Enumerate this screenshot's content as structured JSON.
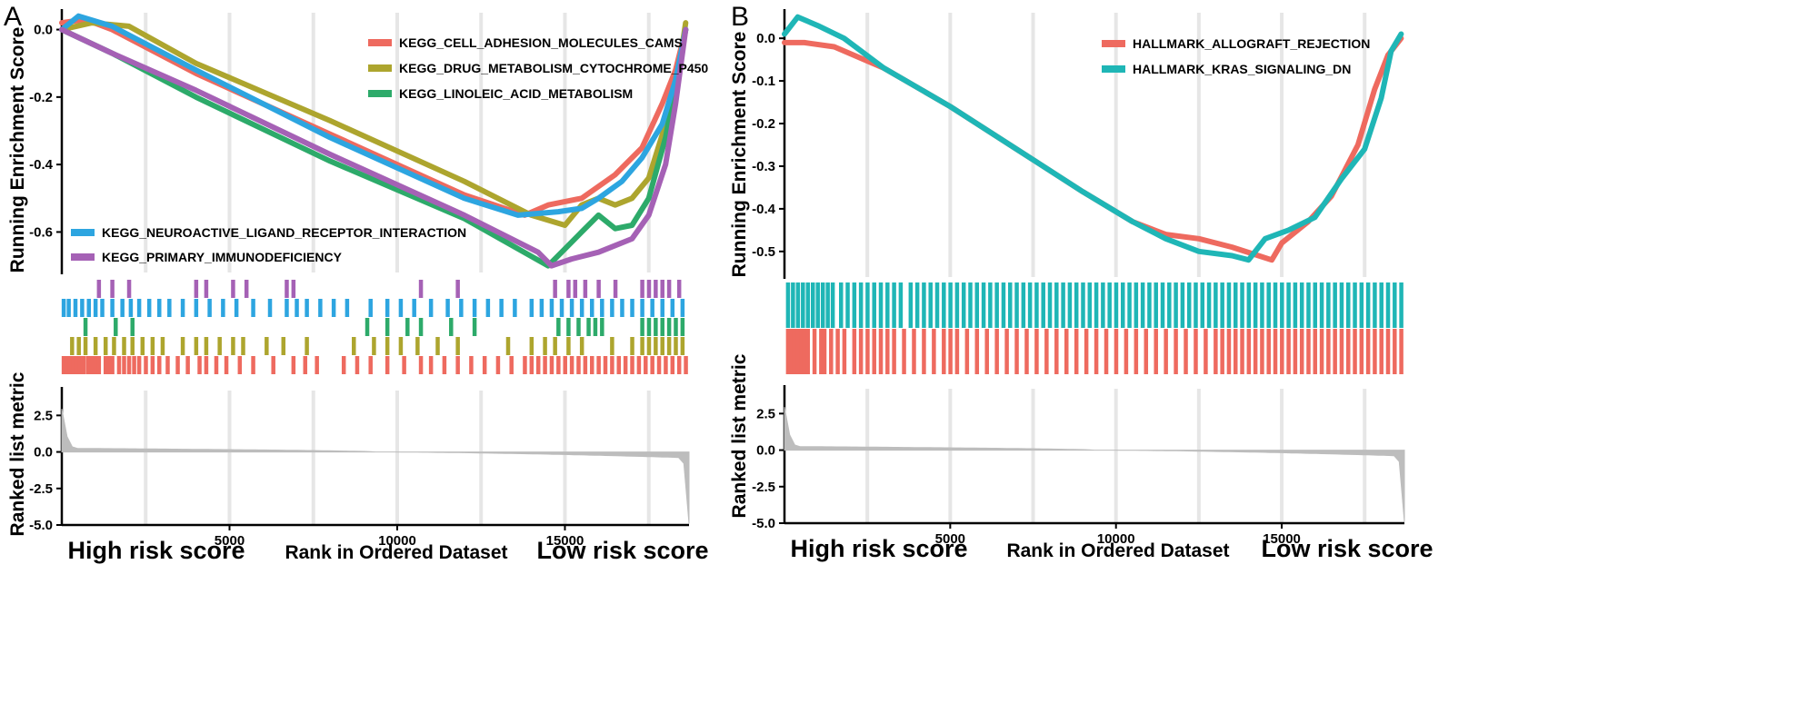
{
  "chart_data": [
    {
      "panel": "A",
      "type": "line",
      "ylabel_top": "Running Enrichment Score",
      "ylabel_bottom": "Ranked list metric",
      "xlabel": "Rank in Ordered Dataset",
      "left_label": "High risk score",
      "right_label": "Low risk score",
      "x_ticks": [
        "5000",
        "10000",
        "15000"
      ],
      "x_tick_values": [
        5000,
        10000,
        15000
      ],
      "xlim": [
        0,
        18700
      ],
      "es_ylim": [
        -0.72,
        0.05
      ],
      "es_ticks": [
        0.0,
        -0.2,
        -0.4,
        -0.6
      ],
      "es_tick_labels": [
        "0.0",
        "-0.2",
        "-0.4",
        "-0.6"
      ],
      "metric_ylim": [
        -5.0,
        4.2
      ],
      "metric_ticks": [
        2.5,
        0.0,
        -2.5,
        -5.0
      ],
      "metric_tick_labels": [
        "2.5",
        "0.0",
        "-2.5",
        "-5.0"
      ],
      "series": [
        {
          "name": "KEGG_CELL_ADHESION_MOLECULES_CAMS",
          "color": "#EE6A5F",
          "points": [
            [
              0,
              0.02
            ],
            [
              700,
              0.03
            ],
            [
              1500,
              0.0
            ],
            [
              4000,
              -0.13
            ],
            [
              8000,
              -0.31
            ],
            [
              12000,
              -0.49
            ],
            [
              13800,
              -0.55
            ],
            [
              14500,
              -0.52
            ],
            [
              15500,
              -0.5
            ],
            [
              16500,
              -0.43
            ],
            [
              17300,
              -0.35
            ],
            [
              17900,
              -0.22
            ],
            [
              18300,
              -0.12
            ],
            [
              18600,
              0.0
            ]
          ],
          "hits": [
            50,
            150,
            230,
            330,
            430,
            530,
            650,
            780,
            880,
            990,
            1100,
            1300,
            1400,
            1500,
            1700,
            1850,
            2000,
            2150,
            2300,
            2500,
            2700,
            2900,
            3150,
            3450,
            3750,
            4100,
            4300,
            4600,
            4900,
            5300,
            5700,
            6300,
            6900,
            7250,
            7600,
            8400,
            8800,
            9200,
            9700,
            10200,
            10700,
            11000,
            11400,
            11800,
            12200,
            12600,
            13000,
            13400,
            13800,
            14000,
            14200,
            14400,
            14600,
            14800,
            15000,
            15200,
            15400,
            15600,
            15800,
            16000,
            16200,
            16400,
            16600,
            16800,
            17000,
            17200,
            17400,
            17600,
            17800,
            18000,
            18200,
            18400,
            18600
          ]
        },
        {
          "name": "KEGG_DRUG_METABOLISM_CYTOCHROME_P450",
          "color": "#ADA52E",
          "points": [
            [
              0,
              0.0
            ],
            [
              900,
              0.02
            ],
            [
              2000,
              0.01
            ],
            [
              4000,
              -0.1
            ],
            [
              8000,
              -0.27
            ],
            [
              12000,
              -0.45
            ],
            [
              14000,
              -0.55
            ],
            [
              15000,
              -0.58
            ],
            [
              15500,
              -0.52
            ],
            [
              16000,
              -0.5
            ],
            [
              16500,
              -0.52
            ],
            [
              17000,
              -0.5
            ],
            [
              17500,
              -0.44
            ],
            [
              18000,
              -0.28
            ],
            [
              18300,
              -0.18
            ],
            [
              18600,
              0.02
            ]
          ],
          "hits": [
            300,
            500,
            700,
            1000,
            1300,
            1550,
            1850,
            2100,
            2400,
            2700,
            3000,
            3600,
            4000,
            4300,
            4700,
            5100,
            5400,
            6100,
            6600,
            7300,
            8700,
            9300,
            9700,
            10100,
            10600,
            11200,
            11800,
            13300,
            14000,
            14400,
            14700,
            15100,
            15500,
            16400,
            17000,
            17300,
            17500,
            17700,
            17900,
            18100,
            18300,
            18500
          ]
        },
        {
          "name": "KEGG_LINOLEIC_ACID_METABOLISM",
          "color": "#2DAA6A",
          "points": [
            [
              0,
              0.0
            ],
            [
              1500,
              -0.07
            ],
            [
              4000,
              -0.2
            ],
            [
              8000,
              -0.39
            ],
            [
              12000,
              -0.56
            ],
            [
              14500,
              -0.7
            ],
            [
              15000,
              -0.65
            ],
            [
              15500,
              -0.6
            ],
            [
              16000,
              -0.55
            ],
            [
              16500,
              -0.59
            ],
            [
              17000,
              -0.58
            ],
            [
              17500,
              -0.5
            ],
            [
              18000,
              -0.32
            ],
            [
              18600,
              0.0
            ]
          ],
          "hits": [
            700,
            1600,
            2100,
            9100,
            9700,
            10300,
            10700,
            11600,
            12300,
            14800,
            15100,
            15400,
            15700,
            15900,
            16100,
            17300,
            17500,
            17700,
            17900,
            18100,
            18300,
            18500
          ]
        },
        {
          "name": "KEGG_NEUROACTIVE_LIGAND_RECEPTOR_INTERACTION",
          "color": "#2DA5E0",
          "points": [
            [
              0,
              0.0
            ],
            [
              500,
              0.04
            ],
            [
              1500,
              0.01
            ],
            [
              4000,
              -0.12
            ],
            [
              8000,
              -0.32
            ],
            [
              12000,
              -0.5
            ],
            [
              13600,
              -0.55
            ],
            [
              14800,
              -0.54
            ],
            [
              15500,
              -0.53
            ],
            [
              16000,
              -0.5
            ],
            [
              16700,
              -0.45
            ],
            [
              17300,
              -0.38
            ],
            [
              17900,
              -0.28
            ],
            [
              18300,
              -0.15
            ],
            [
              18600,
              0.0
            ]
          ],
          "hits": [
            50,
            200,
            400,
            600,
            800,
            1000,
            1200,
            1500,
            1800,
            2050,
            2300,
            2600,
            2900,
            3200,
            3600,
            4000,
            4400,
            4800,
            5200,
            5700,
            6200,
            6700,
            7000,
            7300,
            7700,
            8100,
            8500,
            9200,
            9700,
            10100,
            10500,
            11000,
            11500,
            11900,
            12300,
            12700,
            13100,
            13500,
            14000,
            14300,
            14600,
            14900,
            15200,
            15500,
            15800,
            16100,
            16400,
            16700,
            17000,
            17300,
            17600,
            17900,
            18200,
            18500
          ]
        },
        {
          "name": "KEGG_PRIMARY_IMMUNODEFICIENCY",
          "color": "#A561B5",
          "points": [
            [
              0,
              0.0
            ],
            [
              1500,
              -0.07
            ],
            [
              4000,
              -0.18
            ],
            [
              8000,
              -0.37
            ],
            [
              12000,
              -0.55
            ],
            [
              14200,
              -0.66
            ],
            [
              14600,
              -0.7
            ],
            [
              15200,
              -0.68
            ],
            [
              16000,
              -0.66
            ],
            [
              16500,
              -0.64
            ],
            [
              17000,
              -0.62
            ],
            [
              17500,
              -0.55
            ],
            [
              18000,
              -0.4
            ],
            [
              18300,
              -0.22
            ],
            [
              18600,
              0.0
            ]
          ],
          "hits": [
            1100,
            1500,
            2000,
            4000,
            4300,
            5100,
            5500,
            6700,
            6900,
            10700,
            11800,
            14700,
            15100,
            15300,
            15600,
            16000,
            16500,
            17300,
            17500,
            17700,
            17900,
            18100,
            18400
          ]
        }
      ]
    },
    {
      "panel": "B",
      "type": "line",
      "ylabel_top": "Running Enrichment Score",
      "ylabel_bottom": "Ranked list metric",
      "xlabel": "Rank in Ordered Dataset",
      "left_label": "High risk score",
      "right_label": "Low risk score",
      "x_ticks": [
        "5000",
        "10000",
        "15000"
      ],
      "x_tick_values": [
        5000,
        10000,
        15000
      ],
      "xlim": [
        0,
        18700
      ],
      "es_ylim": [
        -0.56,
        0.06
      ],
      "es_ticks": [
        0.0,
        -0.1,
        -0.2,
        -0.3,
        -0.4,
        -0.5
      ],
      "es_tick_labels": [
        "0.0",
        "-0.1",
        "-0.2",
        "-0.3",
        "-0.4",
        "-0.5"
      ],
      "metric_ylim": [
        -5.0,
        4.2
      ],
      "metric_ticks": [
        2.5,
        0.0,
        -2.5,
        -5.0
      ],
      "metric_tick_labels": [
        "2.5",
        "0.0",
        "-2.5",
        "-5.0"
      ],
      "series": [
        {
          "name": "HALLMARK_ALLOGRAFT_REJECTION",
          "color": "#EE6A5F",
          "points": [
            [
              0,
              -0.01
            ],
            [
              600,
              -0.01
            ],
            [
              1500,
              -0.02
            ],
            [
              3000,
              -0.07
            ],
            [
              5000,
              -0.16
            ],
            [
              7000,
              -0.26
            ],
            [
              9000,
              -0.36
            ],
            [
              10500,
              -0.43
            ],
            [
              11500,
              -0.46
            ],
            [
              12500,
              -0.47
            ],
            [
              13500,
              -0.49
            ],
            [
              14300,
              -0.51
            ],
            [
              14700,
              -0.52
            ],
            [
              15000,
              -0.48
            ],
            [
              15800,
              -0.43
            ],
            [
              16500,
              -0.37
            ],
            [
              17300,
              -0.25
            ],
            [
              17800,
              -0.12
            ],
            [
              18200,
              -0.04
            ],
            [
              18600,
              0.0
            ]
          ],
          "hits": [
            100,
            200,
            300,
            400,
            500,
            600,
            700,
            900,
            1100,
            1200,
            1400,
            1600,
            1800,
            2100,
            2300,
            2500,
            2700,
            2900,
            3100,
            3300,
            3600,
            3900,
            4200,
            4500,
            4800,
            5000,
            5200,
            5500,
            5800,
            6100,
            6400,
            6700,
            7000,
            7300,
            7600,
            7900,
            8200,
            8500,
            8800,
            9100,
            9400,
            9700,
            10000,
            10300,
            10600,
            10900,
            11200,
            11500,
            11800,
            12100,
            12400,
            12700,
            13000,
            13200,
            13400,
            13600,
            13800,
            14000,
            14200,
            14400,
            14600,
            14800,
            15000,
            15200,
            15400,
            15600,
            15800,
            16000,
            16200,
            16400,
            16600,
            16800,
            17000,
            17200,
            17400,
            17600,
            17800,
            18000,
            18200,
            18400,
            18600
          ]
        },
        {
          "name": "HALLMARK_KRAS_SIGNALING_DN",
          "color": "#1FB6B6",
          "points": [
            [
              0,
              0.01
            ],
            [
              400,
              0.05
            ],
            [
              1000,
              0.03
            ],
            [
              1800,
              0.0
            ],
            [
              3000,
              -0.07
            ],
            [
              5000,
              -0.16
            ],
            [
              7000,
              -0.26
            ],
            [
              9000,
              -0.36
            ],
            [
              10500,
              -0.43
            ],
            [
              11500,
              -0.47
            ],
            [
              12500,
              -0.5
            ],
            [
              13500,
              -0.51
            ],
            [
              14000,
              -0.52
            ],
            [
              14500,
              -0.47
            ],
            [
              15200,
              -0.45
            ],
            [
              16000,
              -0.42
            ],
            [
              16800,
              -0.33
            ],
            [
              17500,
              -0.26
            ],
            [
              18000,
              -0.14
            ],
            [
              18300,
              -0.03
            ],
            [
              18600,
              0.01
            ]
          ],
          "hits": [
            100,
            250,
            400,
            550,
            700,
            850,
            1000,
            1150,
            1300,
            1450,
            1700,
            1900,
            2100,
            2300,
            2500,
            2700,
            2900,
            3100,
            3300,
            3500,
            3800,
            4000,
            4200,
            4400,
            4600,
            4800,
            5000,
            5200,
            5400,
            5600,
            5800,
            6000,
            6200,
            6400,
            6600,
            6800,
            7000,
            7200,
            7400,
            7600,
            7800,
            8000,
            8200,
            8400,
            8600,
            8800,
            9000,
            9200,
            9400,
            9600,
            9800,
            10000,
            10200,
            10400,
            10600,
            10800,
            11000,
            11200,
            11400,
            11600,
            11800,
            12000,
            12200,
            12400,
            12600,
            12800,
            13000,
            13200,
            13400,
            13600,
            13800,
            14000,
            14200,
            14400,
            14600,
            14800,
            15000,
            15200,
            15400,
            15600,
            15800,
            16000,
            16200,
            16400,
            16600,
            16800,
            17000,
            17200,
            17400,
            17600,
            17800,
            18000,
            18200,
            18400,
            18600
          ]
        }
      ]
    }
  ]
}
